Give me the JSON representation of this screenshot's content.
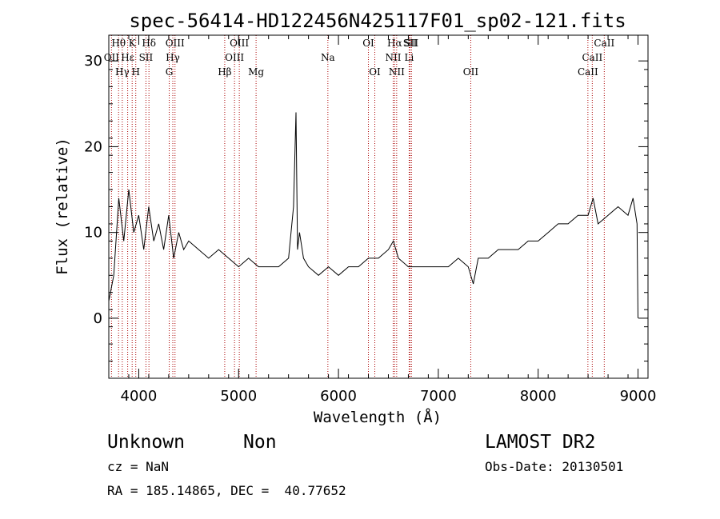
{
  "chart_data": {
    "type": "line",
    "title": "spec-56414-HD122456N425117F01_sp02-121.fits",
    "xlabel": "Wavelength (Å)",
    "ylabel": "Flux (relative)",
    "xlim": [
      3700,
      9100
    ],
    "ylim": [
      -7,
      33
    ],
    "xticks": [
      4000,
      5000,
      6000,
      7000,
      8000,
      9000
    ],
    "yticks": [
      0,
      10,
      20,
      30
    ],
    "grid": false,
    "line_color": "#000000",
    "marker_color": "#aa0000",
    "series": [
      {
        "x": [
          3700,
          3750,
          3800,
          3850,
          3900,
          3950,
          4000,
          4050,
          4100,
          4150,
          4200,
          4250,
          4300,
          4350,
          4400,
          4450,
          4500,
          4600,
          4700,
          4800,
          4900,
          5000,
          5100,
          5200,
          5300,
          5400,
          5500,
          5550,
          5575,
          5590,
          5610,
          5650,
          5700,
          5800,
          5900,
          6000,
          6100,
          6200,
          6300,
          6400,
          6500,
          6550,
          6600,
          6700,
          6800,
          6900,
          7000,
          7100,
          7200,
          7300,
          7350,
          7400,
          7500,
          7600,
          7700,
          7800,
          7900,
          8000,
          8100,
          8200,
          8300,
          8400,
          8500,
          8550,
          8600,
          8700,
          8800,
          8900,
          8950,
          8990,
          9000
        ],
        "y": [
          2,
          5,
          14,
          9,
          15,
          10,
          12,
          8,
          13,
          9,
          11,
          8,
          12,
          7,
          10,
          8,
          9,
          8,
          7,
          8,
          7,
          6,
          7,
          6,
          6,
          6,
          7,
          13,
          24,
          8,
          10,
          7,
          6,
          5,
          6,
          5,
          6,
          6,
          7,
          7,
          8,
          9,
          7,
          6,
          6,
          6,
          6,
          6,
          7,
          6,
          4,
          7,
          7,
          8,
          8,
          8,
          9,
          9,
          10,
          11,
          11,
          12,
          12,
          14,
          11,
          12,
          13,
          12,
          14,
          11,
          0
        ]
      }
    ],
    "line_markers": [
      {
        "label": "Hθ",
        "x": 3798,
        "row": 1
      },
      {
        "label": "OII",
        "x": 3727,
        "row": 2
      },
      {
        "label": "Hγ",
        "x": 3835,
        "row": 3
      },
      {
        "label": "K",
        "x": 3934,
        "row": 1
      },
      {
        "label": "Hε",
        "x": 3889,
        "row": 2
      },
      {
        "label": "H",
        "x": 3970,
        "row": 3
      },
      {
        "label": "Hδ",
        "x": 4102,
        "row": 1
      },
      {
        "label": "SII",
        "x": 4072,
        "row": 2
      },
      {
        "label": "OIII",
        "x": 4363,
        "row": 1
      },
      {
        "label": "Hγ",
        "x": 4341,
        "row": 2
      },
      {
        "label": "G",
        "x": 4305,
        "row": 3
      },
      {
        "label": "Hβ",
        "x": 4861,
        "row": 3
      },
      {
        "label": "OIII",
        "x": 5007,
        "row": 1
      },
      {
        "label": "OIII",
        "x": 4959,
        "row": 2
      },
      {
        "label": "Mg",
        "x": 5175,
        "row": 3
      },
      {
        "label": "Na",
        "x": 5894,
        "row": 2
      },
      {
        "label": "OI",
        "x": 6300,
        "row": 1
      },
      {
        "label": "OI",
        "x": 6364,
        "row": 3
      },
      {
        "label": "Hα",
        "x": 6563,
        "row": 1
      },
      {
        "label": "NII",
        "x": 6548,
        "row": 2
      },
      {
        "label": "NII",
        "x": 6583,
        "row": 3
      },
      {
        "label": "SII",
        "x": 6717,
        "row": 1
      },
      {
        "label": "Li",
        "x": 6708,
        "row": 2
      },
      {
        "label": "SII",
        "x": 6731,
        "row": 0
      },
      {
        "label": "OII",
        "x": 7325,
        "row": 3
      },
      {
        "label": "CaII",
        "x": 8662,
        "row": 1
      },
      {
        "label": "CaII",
        "x": 8542,
        "row": 2
      },
      {
        "label": "CaII",
        "x": 8498,
        "row": 3
      }
    ]
  },
  "footer": {
    "class_label": "Unknown",
    "subclass_label": "Non",
    "survey": "LAMOST DR2",
    "cz": "cz = NaN",
    "obs_date": "Obs-Date: 20130501",
    "coords": "RA = 185.14865, DEC =  40.77652"
  }
}
